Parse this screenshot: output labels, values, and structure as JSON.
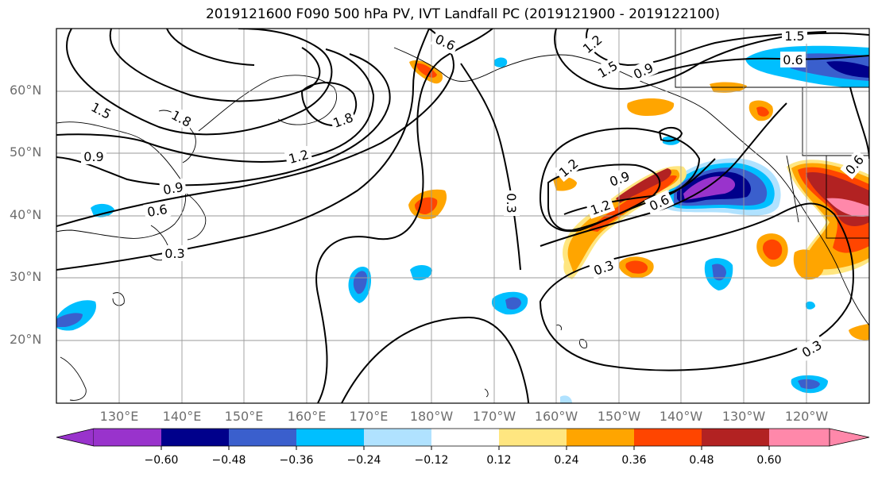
{
  "title": "2019121600 F090 500 hPa PV, IVT Landfall PC (2019121900 - 2019122100)",
  "lat_labels": [
    "60°N",
    "50°N",
    "40°N",
    "30°N",
    "20°N"
  ],
  "lon_labels": [
    "130°E",
    "140°E",
    "150°E",
    "160°E",
    "170°E",
    "180°W",
    "170°W",
    "160°W",
    "150°W",
    "140°W",
    "130°W",
    "120°W"
  ],
  "contour_labels": [
    "1.5",
    "1.8",
    "1.8",
    "0.9",
    "0.9",
    "1.2",
    "0.6",
    "0.3",
    "0.6",
    "0.3",
    "1.2",
    "1.5",
    "0.9",
    "1.5",
    "0.6",
    "1.2",
    "0.9",
    "1.2",
    "0.6",
    "0.3",
    "0.3",
    "0.6"
  ],
  "colorbar": {
    "tick_labels": [
      "−0.60",
      "−0.48",
      "−0.36",
      "−0.24",
      "−0.12",
      "0.12",
      "0.24",
      "0.36",
      "0.48",
      "0.60"
    ],
    "colors": [
      "#9933cc",
      "#00008b",
      "#3a5fcd",
      "#00bfff",
      "#b0e2ff",
      "#ffffff",
      "#ffe680",
      "#ffa500",
      "#ff4500",
      "#b22222",
      "#ff88aa"
    ]
  },
  "colors": {
    "grid": "#9a9a9a",
    "contour": "#000000",
    "coast": "#000000",
    "tick_text": "#6e6e6e"
  }
}
